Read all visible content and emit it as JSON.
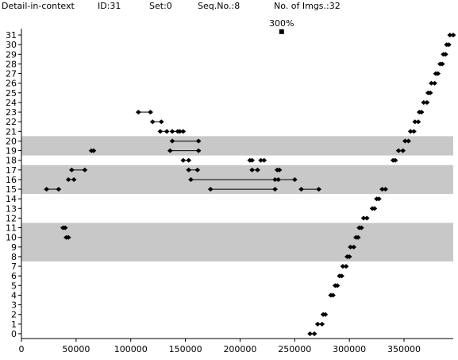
{
  "header": {
    "title": "Detail-in-context",
    "id": "ID:31",
    "set": "Set:0",
    "seq": "Seq.No.:8",
    "imgs": "No. of Imgs.:32"
  },
  "chart_data": {
    "type": "scatter",
    "title": "",
    "xlabel": "",
    "ylabel": "",
    "xlim": [
      0,
      395000
    ],
    "ylim": [
      -0.5,
      31.5
    ],
    "x_ticks": [
      0,
      50000,
      100000,
      150000,
      200000,
      250000,
      300000,
      350000
    ],
    "y_ticks": [
      0,
      1,
      2,
      3,
      4,
      5,
      6,
      7,
      8,
      9,
      10,
      11,
      12,
      13,
      14,
      15,
      16,
      17,
      18,
      19,
      20,
      21,
      22,
      23,
      24,
      25,
      26,
      27,
      28,
      29,
      30,
      31
    ],
    "highlight_bands": [
      [
        7.5,
        11.5
      ],
      [
        14.5,
        17.5
      ],
      [
        18.5,
        20.5
      ]
    ],
    "band_color": "#c8c8c8",
    "marker_color": "#000000",
    "annotation": {
      "text": "300%",
      "x": 238000,
      "y": 31.35
    },
    "points": [
      [
        264000,
        0
      ],
      [
        268000,
        0
      ],
      [
        271000,
        1
      ],
      [
        275000,
        1
      ],
      [
        276000,
        2
      ],
      [
        278000,
        2
      ],
      [
        283000,
        4
      ],
      [
        285000,
        4
      ],
      [
        287000,
        5
      ],
      [
        289000,
        5
      ],
      [
        291000,
        6
      ],
      [
        293000,
        6
      ],
      [
        294000,
        7
      ],
      [
        297000,
        7
      ],
      [
        298000,
        8
      ],
      [
        300000,
        8
      ],
      [
        301000,
        9
      ],
      [
        304000,
        9
      ],
      [
        306000,
        10
      ],
      [
        308000,
        10
      ],
      [
        309000,
        11
      ],
      [
        311000,
        11
      ],
      [
        313000,
        12
      ],
      [
        316000,
        12
      ],
      [
        321000,
        13
      ],
      [
        323000,
        13
      ],
      [
        325000,
        14
      ],
      [
        327000,
        14
      ],
      [
        330000,
        15
      ],
      [
        333000,
        15
      ],
      [
        340000,
        18
      ],
      [
        342000,
        18
      ],
      [
        345000,
        19
      ],
      [
        349000,
        19
      ],
      [
        351000,
        20
      ],
      [
        354000,
        20
      ],
      [
        356000,
        21
      ],
      [
        359000,
        21
      ],
      [
        360000,
        22
      ],
      [
        363000,
        22
      ],
      [
        364000,
        23
      ],
      [
        366000,
        23
      ],
      [
        368000,
        24
      ],
      [
        371000,
        24
      ],
      [
        372000,
        25
      ],
      [
        374000,
        25
      ],
      [
        375000,
        26
      ],
      [
        378000,
        26
      ],
      [
        379000,
        27
      ],
      [
        381000,
        27
      ],
      [
        383000,
        28
      ],
      [
        385000,
        28
      ],
      [
        386000,
        29
      ],
      [
        388000,
        29
      ],
      [
        389000,
        30
      ],
      [
        391000,
        30
      ],
      [
        392000,
        31
      ],
      [
        395000,
        31
      ],
      [
        64000,
        19
      ],
      [
        66000,
        19
      ],
      [
        38000,
        11
      ],
      [
        40000,
        11
      ],
      [
        41000,
        10
      ],
      [
        43000,
        10
      ],
      [
        209000,
        18
      ],
      [
        211000,
        18
      ],
      [
        219000,
        18
      ],
      [
        222000,
        18
      ],
      [
        234000,
        17
      ],
      [
        236000,
        17
      ]
    ],
    "segments": [
      [
        [
          107000,
          23
        ],
        [
          118000,
          23
        ]
      ],
      [
        [
          120000,
          22
        ],
        [
          128000,
          22
        ]
      ],
      [
        [
          127000,
          21
        ],
        [
          133000,
          21
        ]
      ],
      [
        [
          138000,
          21
        ],
        [
          143000,
          21
        ]
      ],
      [
        [
          145000,
          21
        ],
        [
          148000,
          21
        ]
      ],
      [
        [
          138000,
          20
        ],
        [
          162000,
          20
        ]
      ],
      [
        [
          136000,
          19
        ],
        [
          162000,
          19
        ]
      ],
      [
        [
          148000,
          18
        ],
        [
          153000,
          18
        ]
      ],
      [
        [
          46000,
          17
        ],
        [
          58000,
          17
        ]
      ],
      [
        [
          153000,
          17
        ],
        [
          161000,
          17
        ]
      ],
      [
        [
          211000,
          17
        ],
        [
          216000,
          17
        ]
      ],
      [
        [
          43000,
          16
        ],
        [
          48000,
          16
        ]
      ],
      [
        [
          155000,
          16
        ],
        [
          232000,
          16
        ]
      ],
      [
        [
          235000,
          16
        ],
        [
          250000,
          16
        ]
      ],
      [
        [
          23000,
          15
        ],
        [
          34000,
          15
        ]
      ],
      [
        [
          173000,
          15
        ],
        [
          232000,
          15
        ]
      ],
      [
        [
          256000,
          15
        ],
        [
          272000,
          15
        ]
      ]
    ]
  }
}
